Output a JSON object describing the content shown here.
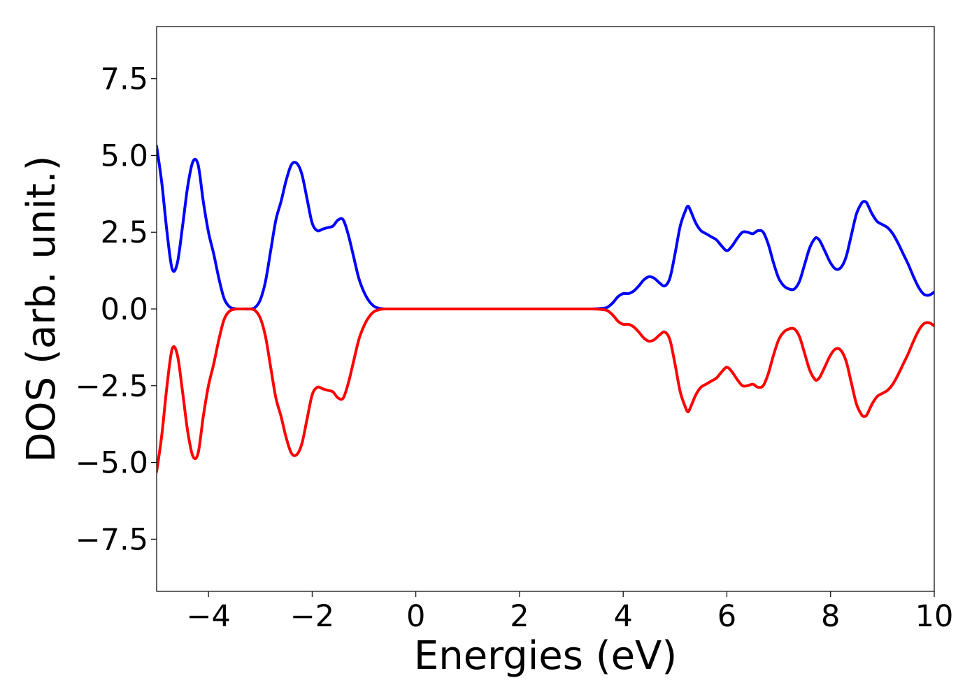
{
  "chart_data": {
    "type": "line",
    "title": "",
    "xlabel": "Energies (eV)",
    "ylabel": "DOS (arb. unit.)",
    "xlim": [
      -5,
      10
    ],
    "ylim": [
      -9.2,
      9.2
    ],
    "xticks": [
      -4,
      -2,
      0,
      2,
      4,
      6,
      8,
      10
    ],
    "xtick_labels": [
      "−4",
      "−2",
      "0",
      "2",
      "4",
      "6",
      "8",
      "10"
    ],
    "yticks": [
      7.5,
      5.0,
      2.5,
      0.0,
      -2.5,
      -5.0,
      -7.5
    ],
    "ytick_labels": [
      "7.5",
      "5.0",
      "2.5",
      "0.0",
      "−2.5",
      "−5.0",
      "−7.5"
    ],
    "grid": false,
    "series": [
      {
        "color": "#0000ff",
        "x": [
          -5.0,
          -4.9,
          -4.8,
          -4.7,
          -4.6,
          -4.5,
          -4.4,
          -4.3,
          -4.2,
          -4.1,
          -4.0,
          -3.9,
          -3.8,
          -3.7,
          -3.6,
          -3.5,
          -3.4,
          -3.3,
          -3.2,
          -3.1,
          -3.0,
          -2.9,
          -2.8,
          -2.7,
          -2.6,
          -2.5,
          -2.4,
          -2.3,
          -2.2,
          -2.1,
          -2.0,
          -1.9,
          -1.8,
          -1.7,
          -1.6,
          -1.5,
          -1.4,
          -1.3,
          -1.2,
          -1.1,
          -1.0,
          -0.9,
          -0.8,
          -0.7,
          -0.6,
          -0.5,
          -0.3,
          0.0,
          1.0,
          2.0,
          3.0,
          3.4,
          3.6,
          3.7,
          3.8,
          3.9,
          4.0,
          4.1,
          4.2,
          4.3,
          4.4,
          4.5,
          4.6,
          4.7,
          4.8,
          4.9,
          5.0,
          5.1,
          5.2,
          5.25,
          5.3,
          5.4,
          5.5,
          5.6,
          5.7,
          5.8,
          5.9,
          6.0,
          6.1,
          6.2,
          6.3,
          6.4,
          6.5,
          6.6,
          6.7,
          6.8,
          6.9,
          7.0,
          7.1,
          7.2,
          7.3,
          7.4,
          7.5,
          7.6,
          7.7,
          7.75,
          7.8,
          7.9,
          8.0,
          8.1,
          8.2,
          8.3,
          8.4,
          8.5,
          8.6,
          8.65,
          8.7,
          8.8,
          8.9,
          9.0,
          9.1,
          9.2,
          9.3,
          9.4,
          9.5,
          9.6,
          9.7,
          9.8,
          9.9,
          10.0
        ],
        "y": [
          5.3,
          4.1,
          2.5,
          1.3,
          1.5,
          2.7,
          4.0,
          4.8,
          4.7,
          3.5,
          2.5,
          1.8,
          1.0,
          0.35,
          0.08,
          0.01,
          0.0,
          0.0,
          0.0,
          0.05,
          0.3,
          0.9,
          1.9,
          2.9,
          3.5,
          4.2,
          4.7,
          4.75,
          4.4,
          3.6,
          2.8,
          2.55,
          2.6,
          2.65,
          2.7,
          2.9,
          2.9,
          2.4,
          1.7,
          1.0,
          0.55,
          0.25,
          0.08,
          0.02,
          0.0,
          0.0,
          0.0,
          0.0,
          0.0,
          0.0,
          0.0,
          0.0,
          0.02,
          0.06,
          0.2,
          0.4,
          0.5,
          0.5,
          0.58,
          0.75,
          0.95,
          1.05,
          1.0,
          0.85,
          0.75,
          1.0,
          1.8,
          2.7,
          3.2,
          3.35,
          3.2,
          2.8,
          2.55,
          2.45,
          2.35,
          2.25,
          2.05,
          1.9,
          2.05,
          2.3,
          2.5,
          2.5,
          2.45,
          2.55,
          2.5,
          2.1,
          1.5,
          1.0,
          0.75,
          0.65,
          0.65,
          0.9,
          1.45,
          2.0,
          2.3,
          2.3,
          2.2,
          1.85,
          1.5,
          1.3,
          1.35,
          1.7,
          2.4,
          3.1,
          3.45,
          3.5,
          3.45,
          3.1,
          2.85,
          2.75,
          2.65,
          2.45,
          2.15,
          1.8,
          1.45,
          1.05,
          0.7,
          0.48,
          0.45,
          0.55
        ]
      },
      {
        "color": "#ff0000",
        "x": [
          -5.0,
          -4.9,
          -4.8,
          -4.7,
          -4.6,
          -4.5,
          -4.4,
          -4.3,
          -4.2,
          -4.1,
          -4.0,
          -3.9,
          -3.8,
          -3.7,
          -3.6,
          -3.5,
          -3.4,
          -3.3,
          -3.2,
          -3.1,
          -3.0,
          -2.9,
          -2.8,
          -2.7,
          -2.6,
          -2.5,
          -2.4,
          -2.3,
          -2.2,
          -2.1,
          -2.0,
          -1.9,
          -1.8,
          -1.7,
          -1.6,
          -1.5,
          -1.4,
          -1.3,
          -1.2,
          -1.1,
          -1.0,
          -0.9,
          -0.8,
          -0.7,
          -0.6,
          -0.5,
          -0.3,
          0.0,
          1.0,
          2.0,
          3.0,
          3.4,
          3.6,
          3.7,
          3.8,
          3.9,
          4.0,
          4.1,
          4.2,
          4.3,
          4.4,
          4.5,
          4.6,
          4.7,
          4.8,
          4.9,
          5.0,
          5.1,
          5.2,
          5.25,
          5.3,
          5.4,
          5.5,
          5.6,
          5.7,
          5.8,
          5.9,
          6.0,
          6.1,
          6.2,
          6.3,
          6.4,
          6.5,
          6.6,
          6.7,
          6.8,
          6.9,
          7.0,
          7.1,
          7.2,
          7.3,
          7.4,
          7.5,
          7.6,
          7.7,
          7.75,
          7.8,
          7.9,
          8.0,
          8.1,
          8.2,
          8.3,
          8.4,
          8.5,
          8.6,
          8.65,
          8.7,
          8.8,
          8.9,
          9.0,
          9.1,
          9.2,
          9.3,
          9.4,
          9.5,
          9.6,
          9.7,
          9.8,
          9.9,
          10.0
        ],
        "y": [
          -5.3,
          -4.1,
          -2.5,
          -1.3,
          -1.5,
          -2.7,
          -4.0,
          -4.8,
          -4.7,
          -3.5,
          -2.5,
          -1.8,
          -1.0,
          -0.35,
          -0.08,
          -0.01,
          0.0,
          0.0,
          0.0,
          -0.05,
          -0.3,
          -0.9,
          -1.9,
          -2.9,
          -3.5,
          -4.2,
          -4.7,
          -4.75,
          -4.4,
          -3.6,
          -2.8,
          -2.55,
          -2.6,
          -2.65,
          -2.7,
          -2.9,
          -2.9,
          -2.4,
          -1.7,
          -1.0,
          -0.55,
          -0.25,
          -0.08,
          -0.02,
          0.0,
          0.0,
          0.0,
          0.0,
          0.0,
          0.0,
          0.0,
          0.0,
          -0.02,
          -0.06,
          -0.2,
          -0.4,
          -0.5,
          -0.5,
          -0.58,
          -0.75,
          -0.95,
          -1.05,
          -1.0,
          -0.85,
          -0.75,
          -1.0,
          -1.8,
          -2.7,
          -3.2,
          -3.35,
          -3.2,
          -2.8,
          -2.55,
          -2.45,
          -2.35,
          -2.25,
          -2.05,
          -1.9,
          -2.05,
          -2.3,
          -2.5,
          -2.5,
          -2.45,
          -2.55,
          -2.5,
          -2.1,
          -1.5,
          -1.0,
          -0.75,
          -0.65,
          -0.65,
          -0.9,
          -1.45,
          -2.0,
          -2.3,
          -2.3,
          -2.2,
          -1.85,
          -1.5,
          -1.3,
          -1.35,
          -1.7,
          -2.4,
          -3.1,
          -3.45,
          -3.5,
          -3.45,
          -3.1,
          -2.85,
          -2.75,
          -2.65,
          -2.45,
          -2.15,
          -1.8,
          -1.45,
          -1.05,
          -0.7,
          -0.48,
          -0.45,
          -0.55
        ]
      }
    ]
  }
}
